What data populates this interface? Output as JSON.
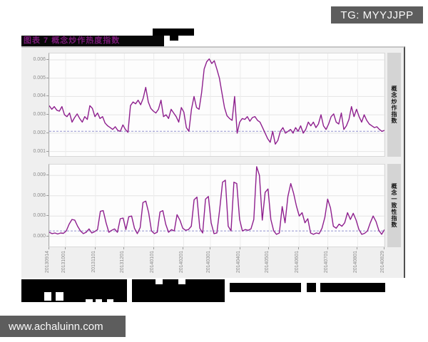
{
  "badge": {
    "label": "TG: MYYJJPP"
  },
  "watermark": {
    "label": "www.achaluinn.com"
  },
  "figure": {
    "title": "图表 7  概念炒作热度指数",
    "title_color": "#7a1a78",
    "line_color": "#8e1f8e",
    "ref_line_color": "#9393cf"
  },
  "chart_data": {
    "type": "line",
    "title": "图表 7  概念炒作热度指数",
    "xlabel": "",
    "ylabel": "",
    "legend": null,
    "grid": true,
    "value_scale": 0.001,
    "x_axis": {
      "labels": [
        "20130914",
        "20131001",
        "20131101",
        "20131201",
        "20140101",
        "20140201",
        "20140301",
        "20140401",
        "20140501",
        "20140601",
        "20140701",
        "20140801",
        "20140829"
      ],
      "fractions": [
        0,
        0.049,
        0.138,
        0.224,
        0.312,
        0.401,
        0.481,
        0.57,
        0.656,
        0.745,
        0.831,
        0.92,
        1.0
      ]
    },
    "facets": [
      {
        "name": "概念炒作指数",
        "ylim_millis": [
          0.75,
          6.35
        ],
        "ytick_values_millis": [
          6,
          5,
          4,
          3,
          2,
          1
        ],
        "ytick_labels": [
          "0.006",
          "0.005",
          "0.004",
          "0.003",
          "0.002",
          "0.001"
        ],
        "ref_line_millis": 2.1,
        "values_millis": [
          3.5,
          3.3,
          3.45,
          3.25,
          3.2,
          3.45,
          3.0,
          2.9,
          3.1,
          2.6,
          2.85,
          3.05,
          2.8,
          2.6,
          2.9,
          2.75,
          3.5,
          3.35,
          2.9,
          3.1,
          2.8,
          2.9,
          2.55,
          2.4,
          2.3,
          2.2,
          2.35,
          2.15,
          2.1,
          2.45,
          2.2,
          2.05,
          3.5,
          3.7,
          3.6,
          3.8,
          3.55,
          3.9,
          4.5,
          3.7,
          3.35,
          3.2,
          3.1,
          3.3,
          3.8,
          2.9,
          3.0,
          2.8,
          3.3,
          3.1,
          2.9,
          2.6,
          3.4,
          3.15,
          2.3,
          2.1,
          3.3,
          4.0,
          3.4,
          3.3,
          4.2,
          5.5,
          5.9,
          6.05,
          5.8,
          5.95,
          5.5,
          5.0,
          4.2,
          3.4,
          2.95,
          2.8,
          2.7,
          4.0,
          2.0,
          2.6,
          2.8,
          2.75,
          2.9,
          2.65,
          2.85,
          2.9,
          2.7,
          2.6,
          2.3,
          2.0,
          1.7,
          1.5,
          2.1,
          1.4,
          1.6,
          2.1,
          2.3,
          2.0,
          2.1,
          2.2,
          2.0,
          2.3,
          2.1,
          2.4,
          2.0,
          2.2,
          2.6,
          2.4,
          2.6,
          2.3,
          2.5,
          3.0,
          2.4,
          2.2,
          2.5,
          2.9,
          3.05,
          2.6,
          2.5,
          3.1,
          2.2,
          2.4,
          2.75,
          3.45,
          2.9,
          3.3,
          2.9,
          2.6,
          3.0,
          2.7,
          2.5,
          2.4,
          2.3,
          2.35,
          2.2,
          2.1,
          2.15
        ]
      },
      {
        "name": "概念一致性指数",
        "ylim_millis": [
          -1.5,
          10.6
        ],
        "ytick_values_millis": [
          9,
          6,
          3,
          0
        ],
        "ytick_labels": [
          "0.009",
          "0.006",
          "0.003",
          "0.000"
        ],
        "ref_line_millis": 0.8,
        "values_millis": [
          0.6,
          0.4,
          0.5,
          0.35,
          0.5,
          0.45,
          0.8,
          1.8,
          2.5,
          2.4,
          1.5,
          0.8,
          0.4,
          0.6,
          1.1,
          0.5,
          0.7,
          1.0,
          3.7,
          3.8,
          2.0,
          0.6,
          0.9,
          1.1,
          0.6,
          2.6,
          2.7,
          1.0,
          2.9,
          3.0,
          1.2,
          0.4,
          1.3,
          5.0,
          5.2,
          3.5,
          0.8,
          0.4,
          0.6,
          3.6,
          3.8,
          1.8,
          0.6,
          1.0,
          0.8,
          3.2,
          2.4,
          1.2,
          0.9,
          1.0,
          1.5,
          5.4,
          5.8,
          1.2,
          0.5,
          5.5,
          5.9,
          2.0,
          0.4,
          0.5,
          4.0,
          8.0,
          8.3,
          1.5,
          0.8,
          8.0,
          7.8,
          2.5,
          0.8,
          1.0,
          0.9,
          1.1,
          2.5,
          10.3,
          9.0,
          2.4,
          6.5,
          7.0,
          2.5,
          0.8,
          0.3,
          0.5,
          4.4,
          2.0,
          5.9,
          7.8,
          6.4,
          4.5,
          3.0,
          3.5,
          2.0,
          2.6,
          0.5,
          0.3,
          0.5,
          0.4,
          1.2,
          2.8,
          5.5,
          4.2,
          1.5,
          1.2,
          1.8,
          1.5,
          2.0,
          3.5,
          2.5,
          3.4,
          2.4,
          1.0,
          0.3,
          0.45,
          0.8,
          2.0,
          3.0,
          2.2,
          0.9,
          0.3,
          1.0
        ]
      }
    ]
  },
  "redactions": {
    "top_bar": [
      214,
      40,
      58,
      10
    ],
    "top_tab": [
      238,
      50,
      12,
      7
    ],
    "caption_bars": [
      [
        30,
        392,
        148,
        18
      ],
      [
        30,
        410,
        148,
        14
      ],
      [
        185,
        392,
        130,
        18
      ],
      [
        185,
        410,
        130,
        14
      ],
      [
        322,
        397,
        100,
        13
      ],
      [
        430,
        397,
        110,
        13
      ]
    ],
    "caption_gaps": [
      [
        62,
        410,
        10,
        12
      ],
      [
        78,
        410,
        11,
        12
      ],
      [
        120,
        420,
        10,
        4
      ],
      [
        134,
        420,
        9,
        4
      ],
      [
        150,
        420,
        9,
        4
      ],
      [
        218,
        392,
        10,
        7
      ],
      [
        250,
        392,
        10,
        7
      ],
      [
        443,
        397,
        6,
        13
      ]
    ]
  }
}
